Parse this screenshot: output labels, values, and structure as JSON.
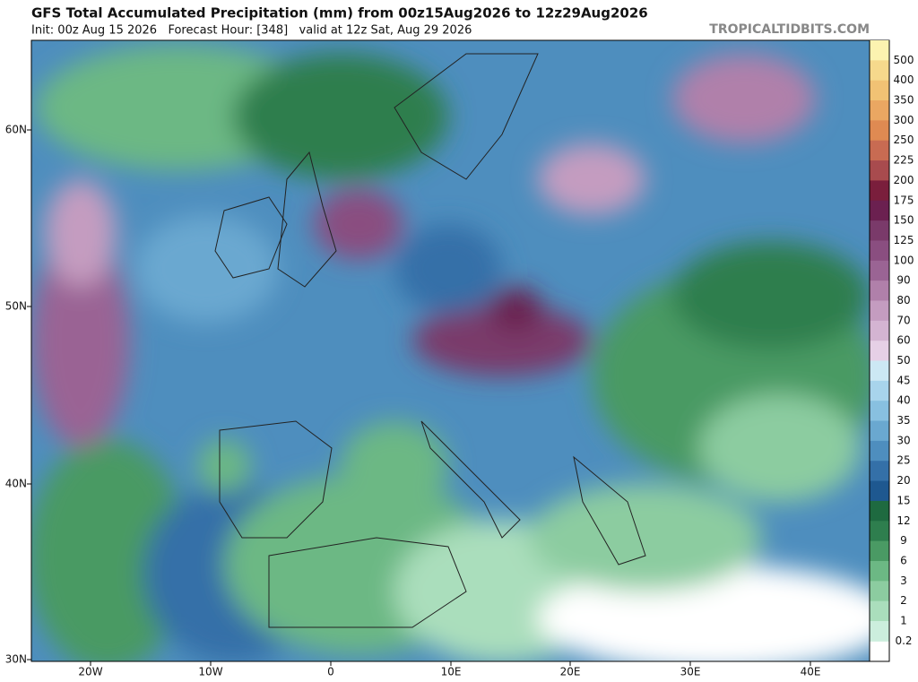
{
  "header": {
    "title": "GFS Total Accumulated Precipitation (mm) from 00z15Aug2026 to 12z29Aug2026",
    "subtitle": "Init: 00z Aug 15 2026   Forecast Hour: [348]   valid at 12z Sat, Aug 29 2026",
    "source": "TROPICALTIDBITS.COM"
  },
  "map": {
    "lat_labels": [
      "60N",
      "50N",
      "40N",
      "30N"
    ],
    "lon_labels": [
      "20W",
      "10W",
      "0",
      "10E",
      "20E",
      "30E",
      "40E"
    ]
  },
  "colorbar": {
    "levels": [
      {
        "label": "500",
        "color": "#fcf3b0"
      },
      {
        "label": "400",
        "color": "#f6d98c"
      },
      {
        "label": "350",
        "color": "#f1c274"
      },
      {
        "label": "300",
        "color": "#eaa762"
      },
      {
        "label": "250",
        "color": "#df8a52"
      },
      {
        "label": "225",
        "color": "#c86b52"
      },
      {
        "label": "200",
        "color": "#a84b4e"
      },
      {
        "label": "175",
        "color": "#7a1e3c"
      },
      {
        "label": "150",
        "color": "#6b2050"
      },
      {
        "label": "125",
        "color": "#7a3a6a"
      },
      {
        "label": "100",
        "color": "#8a4e80"
      },
      {
        "label": "90",
        "color": "#9a6494"
      },
      {
        "label": "80",
        "color": "#b080aa"
      },
      {
        "label": "70",
        "color": "#c49cc0"
      },
      {
        "label": "60",
        "color": "#d4b4d2"
      },
      {
        "label": "50",
        "color": "#e6d0e6"
      },
      {
        "label": "45",
        "color": "#cce8f4"
      },
      {
        "label": "40",
        "color": "#a8d4ec"
      },
      {
        "label": "35",
        "color": "#88c0e0"
      },
      {
        "label": "30",
        "color": "#6aa8d0"
      },
      {
        "label": "25",
        "color": "#4e8ebe"
      },
      {
        "label": "20",
        "color": "#3470a8"
      },
      {
        "label": "15",
        "color": "#1e5890"
      },
      {
        "label": "12",
        "color": "#1e6a40"
      },
      {
        "label": "9",
        "color": "#2e7e4e"
      },
      {
        "label": "6",
        "color": "#4a9a64"
      },
      {
        "label": "3",
        "color": "#6cb884"
      },
      {
        "label": "2",
        "color": "#8ccca0"
      },
      {
        "label": "1",
        "color": "#aadebc"
      },
      {
        "label": "0.2",
        "color": "#cceedd"
      }
    ]
  }
}
